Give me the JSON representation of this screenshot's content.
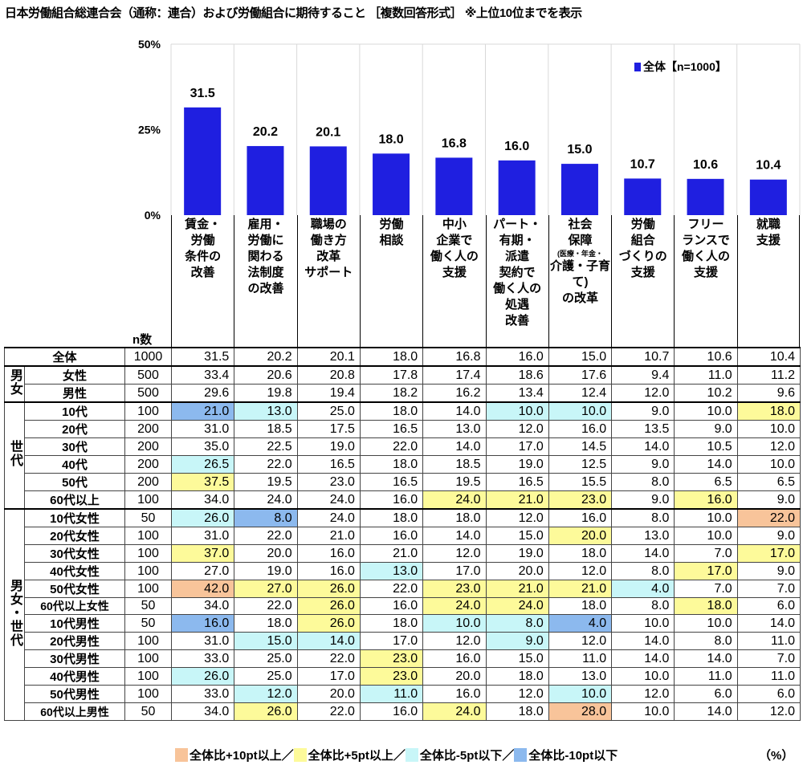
{
  "title": "日本労働組合総連合会（通称：連合）および労働組合に期待すること ［複数回答形式］ ※上位10位までを表示",
  "colors": {
    "bar": "#1f1fe0",
    "plus10": "#f8c49a",
    "plus5": "#fdfa9a",
    "minus5": "#c8f6f8",
    "minus10": "#8cb9ee"
  },
  "legend": "全体【n=1000】",
  "unit_note": "（%）",
  "n_label": "n数",
  "highlight_legend": [
    {
      "key": "plus10",
      "label": "全体比+10pt以上／"
    },
    {
      "key": "plus5",
      "label": "全体比+5pt以上／"
    },
    {
      "key": "minus5",
      "label": "全体比-5pt以下／"
    },
    {
      "key": "minus10",
      "label": "全体比-10pt以下"
    }
  ],
  "chart_data": {
    "type": "bar",
    "title": "日本労働組合総連合会（通称：連合）および労働組合に期待すること ［複数回答形式］ ※上位10位までを表示",
    "categories": [
      "賃金・労働条件の改善",
      "雇用・労働に関わる法制度の改善",
      "職場の働き方改革サポート",
      "労働相談",
      "中小企業で働く人の支援",
      "パート・有期・派遣契約で働く人の処遇改善",
      "社会保障（医療・年金・介護・子育て）の改革",
      "労働組合づくりの支援",
      "フリーランスで働く人の支援",
      "就職支援"
    ],
    "category_lines": [
      [
        "賃金・",
        "労働",
        "条件の",
        "改善"
      ],
      [
        "雇用・",
        "労働に",
        "関わる",
        "法制度",
        "の改善"
      ],
      [
        "職場の",
        "働き方",
        "改革",
        "サポート"
      ],
      [
        "労働",
        "相談"
      ],
      [
        "中小",
        "企業で",
        "働く人の",
        "支援"
      ],
      [
        "パート・",
        "有期・",
        "派遣",
        "契約で",
        "働く人の",
        "処遇",
        "改善"
      ],
      [
        "社会",
        "保障",
        "(医療・年金・",
        "介護・子育て)",
        "の改革"
      ],
      [
        "労働",
        "組合",
        "づくりの",
        "支援"
      ],
      [
        "フリー",
        "ランスで",
        "働く人の",
        "支援"
      ],
      [
        "就職",
        "支援"
      ]
    ],
    "series": [
      {
        "name": "全体【n=1000】",
        "values": [
          31.5,
          20.2,
          20.1,
          18.0,
          16.8,
          16.0,
          15.0,
          10.7,
          10.6,
          10.4
        ]
      }
    ],
    "ylim": [
      0,
      50
    ],
    "yticks": [
      "0%",
      "25%",
      "50%"
    ],
    "ytick_values": [
      0,
      25,
      50
    ],
    "legend_position": "top-right",
    "grid": "vertical lines between categories",
    "table": {
      "groups": [
        {
          "label": "",
          "rows": [
            {
              "label": "全体",
              "n": "1000",
              "values": [
                "31.5",
                "20.2",
                "20.1",
                "18.0",
                "16.8",
                "16.0",
                "15.0",
                "10.7",
                "10.6",
                "10.4"
              ]
            }
          ]
        },
        {
          "label": "男女",
          "rows": [
            {
              "label": "女性",
              "n": "500",
              "values": [
                "33.4",
                "20.6",
                "20.8",
                "17.8",
                "17.4",
                "18.6",
                "17.6",
                "9.4",
                "11.0",
                "11.2"
              ]
            },
            {
              "label": "男性",
              "n": "500",
              "values": [
                "29.6",
                "19.8",
                "19.4",
                "18.2",
                "16.2",
                "13.4",
                "12.4",
                "12.0",
                "10.2",
                "9.6"
              ]
            }
          ]
        },
        {
          "label": "世代",
          "rows": [
            {
              "label": "10代",
              "n": "100",
              "values": [
                "21.0",
                "13.0",
                "25.0",
                "18.0",
                "14.0",
                "10.0",
                "10.0",
                "9.0",
                "10.0",
                "18.0"
              ]
            },
            {
              "label": "20代",
              "n": "200",
              "values": [
                "31.0",
                "18.5",
                "17.5",
                "16.5",
                "13.0",
                "12.0",
                "16.0",
                "13.5",
                "9.0",
                "10.0"
              ]
            },
            {
              "label": "30代",
              "n": "200",
              "values": [
                "35.0",
                "22.5",
                "19.0",
                "22.0",
                "14.0",
                "17.0",
                "14.5",
                "14.0",
                "10.5",
                "12.0"
              ]
            },
            {
              "label": "40代",
              "n": "200",
              "values": [
                "26.5",
                "22.0",
                "16.5",
                "18.0",
                "18.5",
                "19.0",
                "12.5",
                "9.0",
                "14.0",
                "10.0"
              ]
            },
            {
              "label": "50代",
              "n": "200",
              "values": [
                "37.5",
                "19.5",
                "23.0",
                "16.5",
                "19.5",
                "16.5",
                "15.5",
                "8.0",
                "6.5",
                "6.5"
              ]
            },
            {
              "label": "60代以上",
              "n": "100",
              "values": [
                "34.0",
                "24.0",
                "24.0",
                "16.0",
                "24.0",
                "21.0",
                "23.0",
                "9.0",
                "16.0",
                "9.0"
              ]
            }
          ]
        },
        {
          "label": "男女・世代",
          "rows": [
            {
              "label": "10代女性",
              "n": "50",
              "values": [
                "26.0",
                "8.0",
                "24.0",
                "18.0",
                "18.0",
                "12.0",
                "16.0",
                "8.0",
                "10.0",
                "22.0"
              ]
            },
            {
              "label": "20代女性",
              "n": "100",
              "values": [
                "31.0",
                "22.0",
                "21.0",
                "16.0",
                "14.0",
                "15.0",
                "20.0",
                "13.0",
                "10.0",
                "9.0"
              ]
            },
            {
              "label": "30代女性",
              "n": "100",
              "values": [
                "37.0",
                "20.0",
                "16.0",
                "21.0",
                "12.0",
                "19.0",
                "18.0",
                "14.0",
                "7.0",
                "17.0"
              ]
            },
            {
              "label": "40代女性",
              "n": "100",
              "values": [
                "27.0",
                "19.0",
                "16.0",
                "13.0",
                "17.0",
                "20.0",
                "12.0",
                "8.0",
                "17.0",
                "9.0"
              ]
            },
            {
              "label": "50代女性",
              "n": "100",
              "values": [
                "42.0",
                "27.0",
                "26.0",
                "22.0",
                "23.0",
                "21.0",
                "21.0",
                "4.0",
                "7.0",
                "7.0"
              ]
            },
            {
              "label": "60代以上女性",
              "n": "50",
              "values": [
                "34.0",
                "22.0",
                "26.0",
                "16.0",
                "24.0",
                "24.0",
                "18.0",
                "8.0",
                "18.0",
                "6.0"
              ]
            },
            {
              "label": "10代男性",
              "n": "50",
              "values": [
                "16.0",
                "18.0",
                "26.0",
                "18.0",
                "10.0",
                "8.0",
                "4.0",
                "10.0",
                "10.0",
                "14.0"
              ]
            },
            {
              "label": "20代男性",
              "n": "100",
              "values": [
                "31.0",
                "15.0",
                "14.0",
                "17.0",
                "12.0",
                "9.0",
                "12.0",
                "14.0",
                "8.0",
                "11.0"
              ]
            },
            {
              "label": "30代男性",
              "n": "100",
              "values": [
                "33.0",
                "25.0",
                "22.0",
                "23.0",
                "16.0",
                "15.0",
                "11.0",
                "14.0",
                "14.0",
                "7.0"
              ]
            },
            {
              "label": "40代男性",
              "n": "100",
              "values": [
                "26.0",
                "25.0",
                "17.0",
                "23.0",
                "20.0",
                "18.0",
                "13.0",
                "10.0",
                "11.0",
                "11.0"
              ]
            },
            {
              "label": "50代男性",
              "n": "100",
              "values": [
                "33.0",
                "12.0",
                "20.0",
                "11.0",
                "16.0",
                "12.0",
                "10.0",
                "12.0",
                "6.0",
                "6.0"
              ]
            },
            {
              "label": "60代以上男性",
              "n": "50",
              "values": [
                "34.0",
                "26.0",
                "22.0",
                "16.0",
                "24.0",
                "18.0",
                "28.0",
                "10.0",
                "14.0",
                "12.0"
              ]
            }
          ]
        }
      ]
    }
  }
}
